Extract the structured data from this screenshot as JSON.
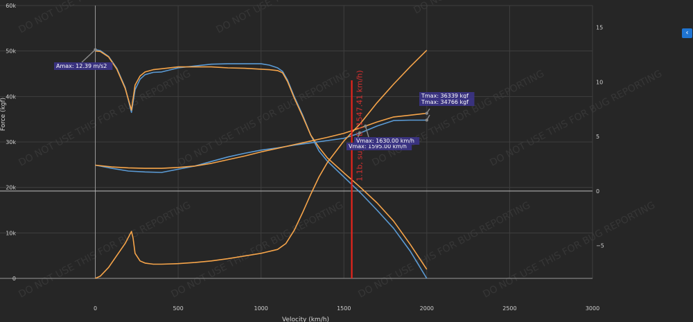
{
  "chart_data": {
    "type": "line",
    "xlabel": "Velocity (km/h)",
    "ylabel": "Force (kgf)",
    "xlim": [
      -575,
      3000
    ],
    "ylim": [
      0,
      60000
    ],
    "y2lim": [
      -8,
      17
    ],
    "x_ticks": [
      0,
      500,
      1000,
      1500,
      2000,
      2500,
      3000
    ],
    "y_ticks": [
      0,
      10000,
      20000,
      30000,
      40000,
      50000,
      60000
    ],
    "y_tick_labels": [
      "0",
      "10k",
      "20k",
      "30k",
      "40k",
      "50k",
      "60k"
    ],
    "y2_ticks": [
      -5,
      0,
      5,
      10,
      15
    ],
    "y2_tick_labels": [
      "−5",
      "0",
      "5",
      "10",
      "15"
    ],
    "grid": true,
    "colors": {
      "blue": "#5b9bd5",
      "orange": "#f7a54a",
      "marker": "#e8241c",
      "annotation": "#3b3386"
    },
    "series": [
      {
        "axis": "y",
        "color": "#5b9bd5",
        "points": [
          [
            0,
            50300
          ],
          [
            30,
            50100
          ],
          [
            80,
            48800
          ],
          [
            130,
            46200
          ],
          [
            180,
            42000
          ],
          [
            218,
            36500
          ],
          [
            240,
            41500
          ],
          [
            270,
            43800
          ],
          [
            300,
            44800
          ],
          [
            350,
            45300
          ],
          [
            400,
            45400
          ],
          [
            500,
            46300
          ],
          [
            600,
            46700
          ],
          [
            700,
            47100
          ],
          [
            800,
            47200
          ],
          [
            900,
            47200
          ],
          [
            1000,
            47200
          ],
          [
            1050,
            46900
          ],
          [
            1100,
            46300
          ],
          [
            1130,
            45500
          ],
          [
            1160,
            43600
          ],
          [
            1200,
            40000
          ],
          [
            1250,
            36000
          ],
          [
            1300,
            31500
          ],
          [
            1350,
            28000
          ],
          [
            1400,
            25800
          ],
          [
            1500,
            22300
          ],
          [
            1600,
            18800
          ],
          [
            1700,
            15000
          ],
          [
            1800,
            11000
          ],
          [
            1900,
            6000
          ],
          [
            2000,
            0
          ]
        ]
      },
      {
        "axis": "y",
        "color": "#f7a54a",
        "points": [
          [
            0,
            50000
          ],
          [
            30,
            49900
          ],
          [
            80,
            48700
          ],
          [
            130,
            46000
          ],
          [
            180,
            41800
          ],
          [
            218,
            37000
          ],
          [
            240,
            42500
          ],
          [
            270,
            44500
          ],
          [
            300,
            45400
          ],
          [
            350,
            45900
          ],
          [
            400,
            46100
          ],
          [
            500,
            46500
          ],
          [
            600,
            46500
          ],
          [
            700,
            46500
          ],
          [
            800,
            46300
          ],
          [
            900,
            46200
          ],
          [
            1000,
            46000
          ],
          [
            1050,
            45900
          ],
          [
            1100,
            45700
          ],
          [
            1130,
            45200
          ],
          [
            1160,
            43300
          ],
          [
            1200,
            39700
          ],
          [
            1250,
            35700
          ],
          [
            1300,
            31500
          ],
          [
            1350,
            28800
          ],
          [
            1400,
            26500
          ],
          [
            1500,
            23200
          ],
          [
            1600,
            20000
          ],
          [
            1700,
            16600
          ],
          [
            1800,
            12600
          ],
          [
            1900,
            7500
          ],
          [
            2000,
            2000
          ]
        ]
      },
      {
        "axis": "y",
        "color": "#5b9bd5",
        "points": [
          [
            0,
            24900
          ],
          [
            100,
            24200
          ],
          [
            200,
            23600
          ],
          [
            300,
            23400
          ],
          [
            400,
            23300
          ],
          [
            500,
            24000
          ],
          [
            600,
            24700
          ],
          [
            700,
            25700
          ],
          [
            800,
            26700
          ],
          [
            900,
            27500
          ],
          [
            1000,
            28200
          ],
          [
            1100,
            28700
          ],
          [
            1200,
            29300
          ],
          [
            1300,
            29800
          ],
          [
            1400,
            30300
          ],
          [
            1500,
            30800
          ],
          [
            1600,
            32000
          ],
          [
            1700,
            33500
          ],
          [
            1800,
            34700
          ],
          [
            1900,
            34800
          ],
          [
            2000,
            34800
          ]
        ]
      },
      {
        "axis": "y",
        "color": "#f7a54a",
        "points": [
          [
            0,
            24900
          ],
          [
            100,
            24500
          ],
          [
            200,
            24300
          ],
          [
            300,
            24200
          ],
          [
            400,
            24200
          ],
          [
            500,
            24400
          ],
          [
            600,
            24700
          ],
          [
            700,
            25300
          ],
          [
            800,
            26100
          ],
          [
            900,
            26900
          ],
          [
            1000,
            27800
          ],
          [
            1100,
            28600
          ],
          [
            1200,
            29400
          ],
          [
            1300,
            30200
          ],
          [
            1400,
            31000
          ],
          [
            1500,
            31900
          ],
          [
            1600,
            33100
          ],
          [
            1700,
            34400
          ],
          [
            1800,
            35500
          ],
          [
            1900,
            35900
          ],
          [
            2000,
            36300
          ]
        ]
      },
      {
        "axis": "y2",
        "color": "#f7a54a",
        "points": [
          [
            0,
            -8
          ],
          [
            30,
            -7.8
          ],
          [
            80,
            -7
          ],
          [
            130,
            -5.9
          ],
          [
            180,
            -4.8
          ],
          [
            218,
            -3.7
          ],
          [
            228,
            -4.3
          ],
          [
            240,
            -5.7
          ],
          [
            270,
            -6.4
          ],
          [
            300,
            -6.6
          ],
          [
            350,
            -6.7
          ],
          [
            400,
            -6.7
          ],
          [
            500,
            -6.65
          ],
          [
            600,
            -6.55
          ],
          [
            700,
            -6.4
          ],
          [
            800,
            -6.2
          ],
          [
            900,
            -5.95
          ],
          [
            1000,
            -5.7
          ],
          [
            1100,
            -5.35
          ],
          [
            1150,
            -4.8
          ],
          [
            1200,
            -3.6
          ],
          [
            1250,
            -2
          ],
          [
            1300,
            -0.3
          ],
          [
            1350,
            1.3
          ],
          [
            1400,
            2.6
          ],
          [
            1500,
            4.6
          ],
          [
            1600,
            6.2
          ],
          [
            1700,
            8.1
          ],
          [
            1800,
            9.8
          ],
          [
            1900,
            11.4
          ],
          [
            2000,
            12.9
          ]
        ]
      }
    ],
    "vertical_marker": {
      "x": 1547.41,
      "label": "1.1b, su_..NE (1547.41 km/h)"
    },
    "annotations": [
      {
        "x": 0,
        "y": 50300,
        "text": "Amax: 12.39 m/s2"
      },
      {
        "x": 2000,
        "y": 36300,
        "text": "Tmax: 36339 kgf"
      },
      {
        "x": 2000,
        "y": 34800,
        "text": "Tmax: 34766 kgf"
      },
      {
        "x": 1595,
        "y": 32000,
        "text": "Vmax: 1595.00 km/h"
      },
      {
        "x": 1630,
        "y": 33500,
        "text": "Vmax: 1630.00 km/h"
      }
    ],
    "watermark": "DO NOT USE THIS FOR BUG REPORTING"
  },
  "ui": {
    "collapse_button": "‹"
  }
}
